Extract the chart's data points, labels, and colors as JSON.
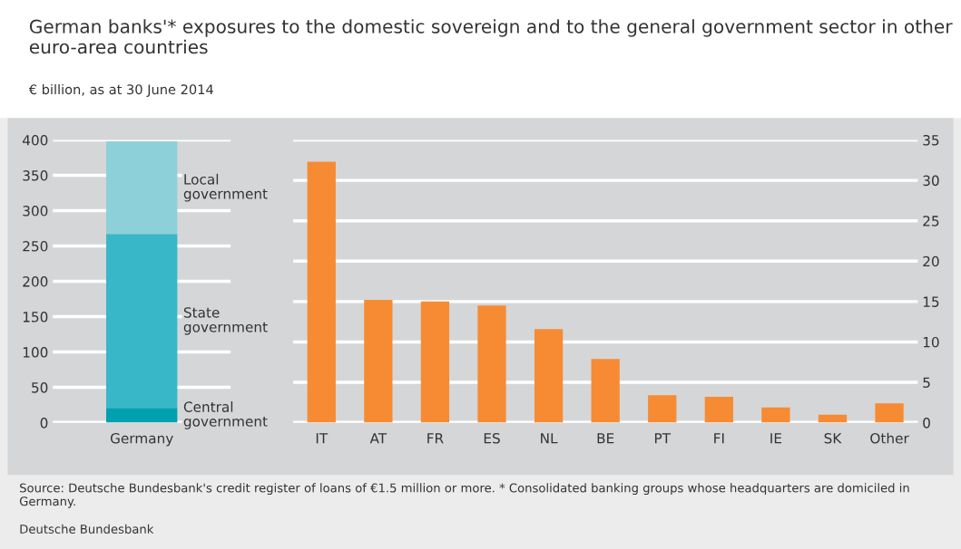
{
  "chart_data": [
    {
      "type": "bar",
      "title": "German banks'* exposures to the domestic sovereign and to the general government sector in other euro-area countries",
      "subtitle": "€ billion, as at 30 June 2014",
      "annotations": [
        "Source: Deutsche Bundesbank's credit register of loans of €1.5 million or more. * Consolidated banking groups whose headquarters are domiciled in Germany.",
        "Deutsche Bundesbank"
      ],
      "categories": [
        "Germany"
      ],
      "stacked": true,
      "series": [
        {
          "name": "Central government",
          "color": "#00a0af",
          "values": [
            21
          ]
        },
        {
          "name": "State government",
          "color": "#37b7c7",
          "values": [
            246
          ]
        },
        {
          "name": "Local government",
          "color": "#8ed0da",
          "values": [
            131
          ]
        }
      ],
      "ylim": [
        0,
        400
      ],
      "yticks": [
        0,
        50,
        100,
        150,
        200,
        250,
        300,
        350,
        400
      ],
      "grid": "y",
      "legend": false
    },
    {
      "type": "bar",
      "categories": [
        "IT",
        "AT",
        "FR",
        "ES",
        "NL",
        "BE",
        "PT",
        "FI",
        "IE",
        "SK",
        "Other"
      ],
      "values": [
        32.3,
        15.2,
        15.0,
        14.5,
        11.6,
        7.9,
        3.4,
        3.2,
        1.9,
        1.0,
        2.4
      ],
      "color": "#f68b33",
      "ylim": [
        0,
        35
      ],
      "yticks": [
        0,
        5,
        10,
        15,
        20,
        25,
        30,
        35
      ],
      "grid": "y",
      "legend": false
    }
  ]
}
